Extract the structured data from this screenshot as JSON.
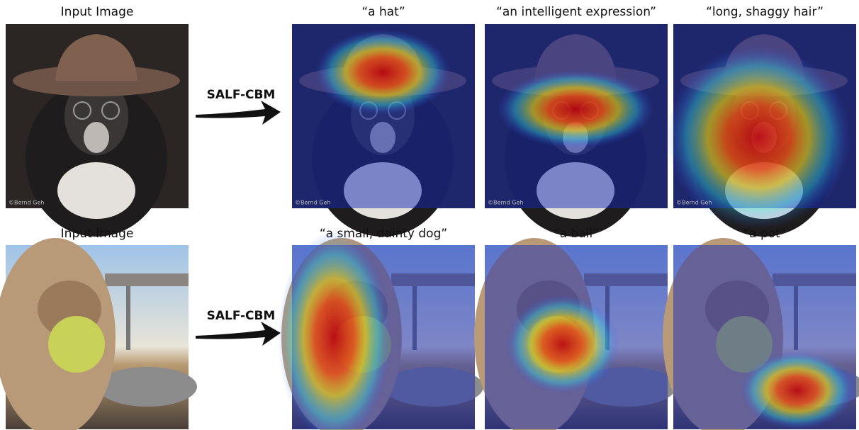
{
  "rows": [
    {
      "input_label": "Input Image",
      "method": "SALF-CBM",
      "watermark": "©Bernd Geh",
      "concepts": [
        "“a hat”",
        "“an intelligent expression”",
        "“long, shaggy hair”"
      ]
    },
    {
      "input_label": "Input Image",
      "method": "SALF-CBM",
      "concepts": [
        "“a small, dainty dog”",
        "“a ball”",
        "“a pot”"
      ]
    }
  ]
}
